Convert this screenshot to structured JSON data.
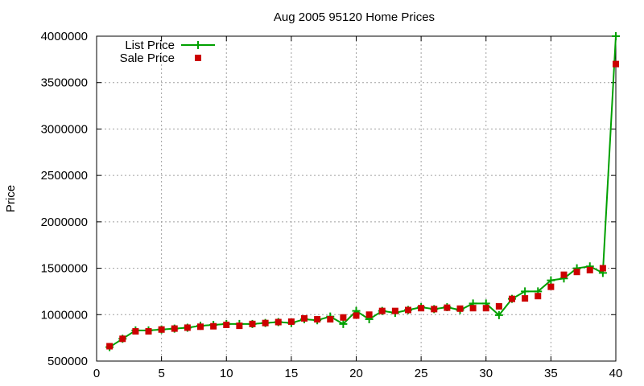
{
  "chart_data": {
    "type": "line",
    "title": "Aug 2005 95120 Home Prices",
    "xlabel": "",
    "ylabel": "Price",
    "xlim": [
      0,
      40
    ],
    "ylim": [
      500000,
      4000000
    ],
    "xticks": [
      0,
      5,
      10,
      15,
      20,
      25,
      30,
      35,
      40
    ],
    "yticks": [
      500000,
      1000000,
      1500000,
      2000000,
      2500000,
      3000000,
      3500000,
      4000000
    ],
    "grid": true,
    "legend_position": "top-left",
    "x": [
      1,
      2,
      3,
      4,
      5,
      6,
      7,
      8,
      9,
      10,
      11,
      12,
      13,
      14,
      15,
      16,
      17,
      18,
      19,
      20,
      21,
      22,
      23,
      24,
      25,
      26,
      27,
      28,
      29,
      30,
      31,
      32,
      33,
      34,
      35,
      36,
      37,
      38,
      39,
      40
    ],
    "series": [
      {
        "name": "List Price",
        "style": "lines+crosses",
        "color": "#00a000",
        "values": [
          650000,
          740000,
          830000,
          830000,
          840000,
          850000,
          860000,
          880000,
          890000,
          900000,
          900000,
          900000,
          910000,
          920000,
          910000,
          950000,
          940000,
          980000,
          900000,
          1040000,
          950000,
          1040000,
          1020000,
          1050000,
          1080000,
          1060000,
          1080000,
          1050000,
          1120000,
          1120000,
          995000,
          1170000,
          1250000,
          1250000,
          1370000,
          1390000,
          1500000,
          1520000,
          1450000,
          4000000
        ]
      },
      {
        "name": "Sale Price",
        "style": "points",
        "color": "#cc0000",
        "values": [
          660000,
          740000,
          820000,
          820000,
          840000,
          850000,
          860000,
          870000,
          875000,
          890000,
          880000,
          900000,
          910000,
          920000,
          925000,
          960000,
          950000,
          950000,
          970000,
          990000,
          1000000,
          1040000,
          1040000,
          1050000,
          1070000,
          1060000,
          1075000,
          1065000,
          1070000,
          1070000,
          1090000,
          1170000,
          1175000,
          1200000,
          1300000,
          1430000,
          1460000,
          1480000,
          1500000,
          3700000
        ]
      }
    ]
  }
}
